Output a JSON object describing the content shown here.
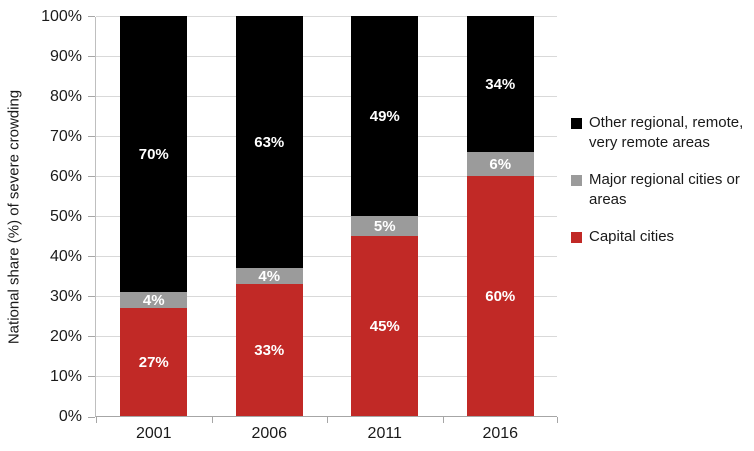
{
  "chart_data": {
    "type": "bar",
    "stacked": true,
    "percent_stacked": true,
    "categories": [
      "2001",
      "2006",
      "2011",
      "2016"
    ],
    "series": [
      {
        "name": "Capital cities",
        "color": "#c12926",
        "values": [
          27,
          33,
          45,
          60
        ],
        "labels": [
          "27%",
          "33%",
          "45%",
          "60%"
        ]
      },
      {
        "name": "Major regional cities or areas",
        "color": "#9b9b9b",
        "values": [
          4,
          4,
          5,
          6
        ],
        "labels": [
          "4%",
          "4%",
          "5%",
          "6%"
        ]
      },
      {
        "name": "Other regional, remote, very remote areas",
        "color": "#000000",
        "values": [
          70,
          63,
          49,
          34
        ],
        "labels": [
          "70%",
          "63%",
          "49%",
          "34%"
        ]
      }
    ],
    "title": "",
    "xlabel": "",
    "ylabel": "National share (%) of severe crowding",
    "ylim": [
      0,
      100
    ],
    "ytick_step": 10,
    "ytick_labels": [
      "0%",
      "10%",
      "20%",
      "30%",
      "40%",
      "50%",
      "60%",
      "70%",
      "80%",
      "90%",
      "100%"
    ],
    "grid": true,
    "bar_label_color": "#ffffff",
    "legend_position": "right",
    "legend": [
      {
        "label": "Other regional, remote, very remote areas",
        "color": "#000000"
      },
      {
        "label": "Major regional cities or areas",
        "color": "#9b9b9b"
      },
      {
        "label": "Capital cities",
        "color": "#c12926"
      }
    ]
  },
  "colors": {
    "gridline": "#d9d9d9",
    "axis": "#a6a6a6",
    "text": "#1a1a1a",
    "background": "#ffffff"
  }
}
